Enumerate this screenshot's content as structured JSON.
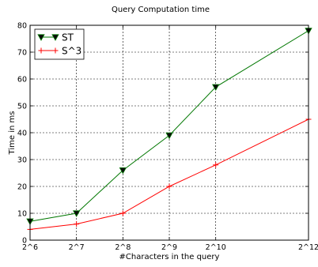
{
  "chart_data": {
    "type": "line",
    "title": "Query Computation time",
    "xlabel": "#Characters in the query",
    "ylabel": "Time in ms",
    "categories": [
      "2^6",
      "2^7",
      "2^8",
      "2^9",
      "2^10",
      "2^12"
    ],
    "x": [
      6,
      7,
      8,
      9,
      10,
      11.999
    ],
    "xlim": [
      6,
      11.999
    ],
    "ylim": [
      0,
      80
    ],
    "yticks": [
      0,
      10,
      20,
      30,
      40,
      50,
      60,
      70,
      80
    ],
    "grid": true,
    "legend_position": "top-left",
    "series": [
      {
        "name": "ST",
        "color": "#007700",
        "marker": "triangle-down",
        "x": [
          6,
          7,
          8,
          9,
          10,
          11.999
        ],
        "values": [
          7,
          10,
          26,
          39,
          57,
          78
        ]
      },
      {
        "name": "S^3",
        "color": "#ff0000",
        "marker": "plus",
        "x": [
          6,
          7,
          8,
          9,
          10,
          11.999
        ],
        "values": [
          4,
          6,
          10,
          20,
          28,
          45
        ]
      }
    ]
  }
}
